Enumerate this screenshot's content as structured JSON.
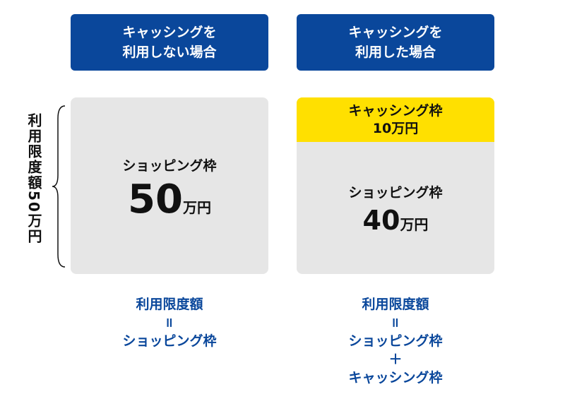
{
  "headers": {
    "left": [
      "キャッシングを",
      "利用しない場合"
    ],
    "right": [
      "キャッシングを",
      "利用した場合"
    ]
  },
  "side_label": "利用限度額50万円",
  "left_box": {
    "label": "ショッピング枠",
    "amount": "50",
    "unit": "万円"
  },
  "right_box": {
    "cashing_label": "キャッシング枠",
    "cashing_amount": "10万円",
    "label": "ショッピング枠",
    "amount": "40",
    "unit": "万円"
  },
  "formula_left": [
    "利用限度額",
    "=",
    "ショッピング枠"
  ],
  "formula_right": [
    "利用限度額",
    "=",
    "ショッピング枠",
    "＋",
    "キャッシング枠"
  ],
  "colors": {
    "blue": "#0a479b",
    "yellow": "#ffe000",
    "gray": "#e6e6e6"
  }
}
